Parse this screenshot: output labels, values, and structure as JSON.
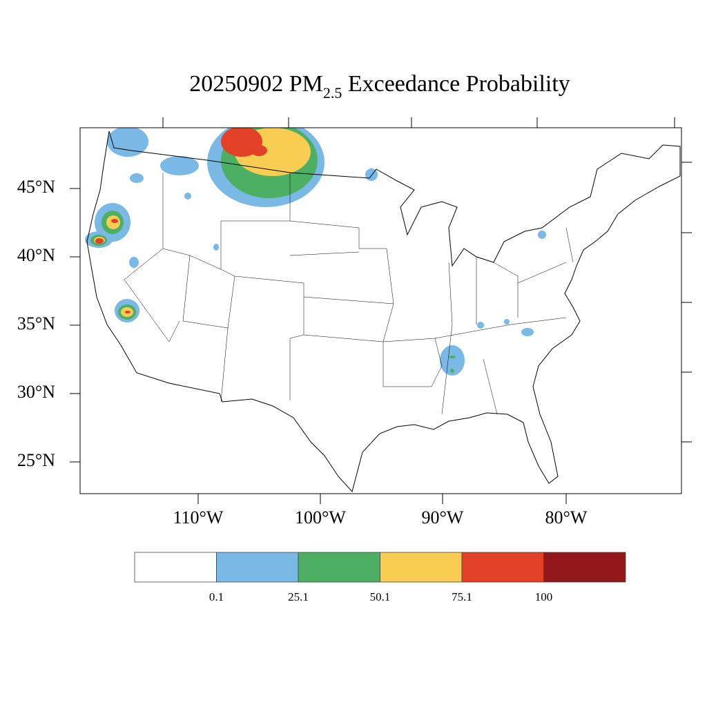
{
  "title": {
    "text": "20250902 PM",
    "subscript": "2.5",
    "suffix": " Exceedance Probability"
  },
  "lat_labels": [
    "45°N",
    "40°N",
    "35°N",
    "30°N",
    "25°N"
  ],
  "lon_labels": [
    "110°W",
    "100°W",
    "90°W",
    "80°W"
  ],
  "colorbar": {
    "colors": [
      "#ffffff",
      "#7ab8e6",
      "#4caf64",
      "#f9cd52",
      "#e24128",
      "#92171b"
    ],
    "labels": [
      "0.1",
      "25.1",
      "50.1",
      "75.1",
      "100"
    ]
  }
}
